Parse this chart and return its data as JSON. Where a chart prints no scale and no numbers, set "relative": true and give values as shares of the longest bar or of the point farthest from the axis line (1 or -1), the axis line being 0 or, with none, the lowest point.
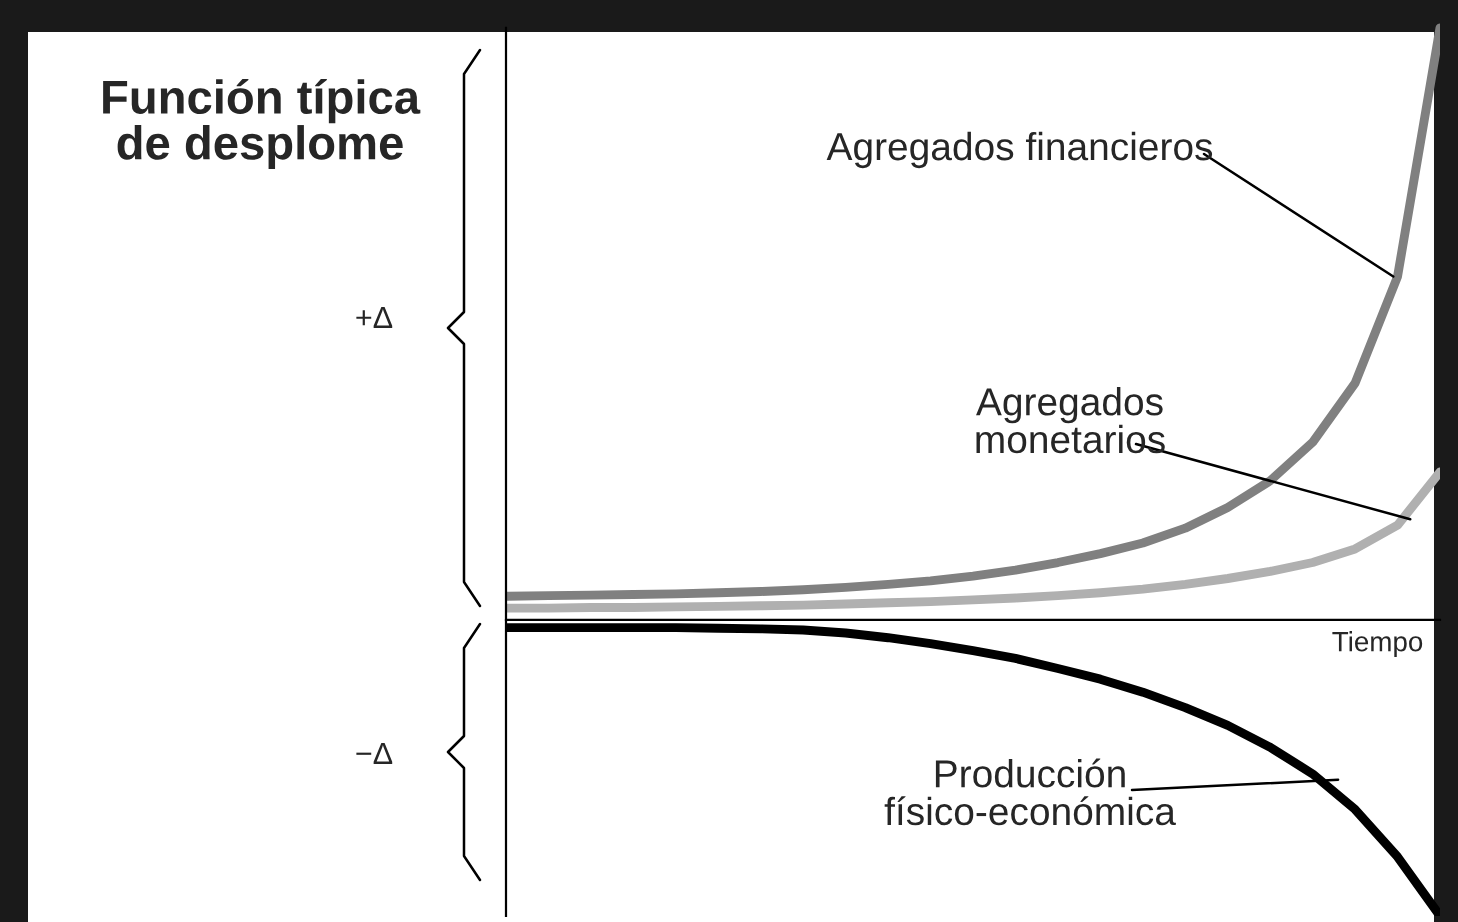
{
  "chart_data": {
    "type": "line",
    "relative": true,
    "title": "Función típica\nde desplome",
    "xlabel": "Tiempo",
    "categories": [
      null,
      null,
      null,
      null,
      null,
      null,
      null,
      null,
      null,
      null,
      null,
      null,
      null,
      null,
      null,
      null,
      null,
      null,
      null,
      null,
      null,
      null,
      null
    ],
    "series": [
      {
        "color": "#808080",
        "values": [
          0.04,
          0.041,
          0.042,
          0.043,
          0.044,
          0.046,
          0.048,
          0.051,
          0.055,
          0.06,
          0.066,
          0.074,
          0.084,
          0.097,
          0.112,
          0.13,
          0.155,
          0.19,
          0.235,
          0.3,
          0.4,
          0.58,
          1.0
        ]
      },
      {
        "color": "#b0b0b0",
        "values": [
          0.02,
          0.02,
          0.021,
          0.021,
          0.022,
          0.023,
          0.024,
          0.025,
          0.027,
          0.029,
          0.031,
          0.034,
          0.037,
          0.041,
          0.046,
          0.052,
          0.06,
          0.07,
          0.082,
          0.097,
          0.12,
          0.16,
          0.25
        ]
      },
      {
        "color": "#000000",
        "values": [
          -0.013,
          -0.013,
          -0.013,
          -0.013,
          -0.013,
          -0.014,
          -0.015,
          -0.017,
          -0.022,
          -0.03,
          -0.04,
          -0.052,
          -0.065,
          -0.082,
          -0.1,
          -0.122,
          -0.148,
          -0.178,
          -0.215,
          -0.26,
          -0.32,
          -0.4,
          -0.5
        ]
      }
    ],
    "annotations": [
      "Agregados financieros",
      "Agregados\nmonetarios",
      "Producción\nfísico-económica",
      "+Δ",
      "−Δ"
    ],
    "grid": false
  }
}
